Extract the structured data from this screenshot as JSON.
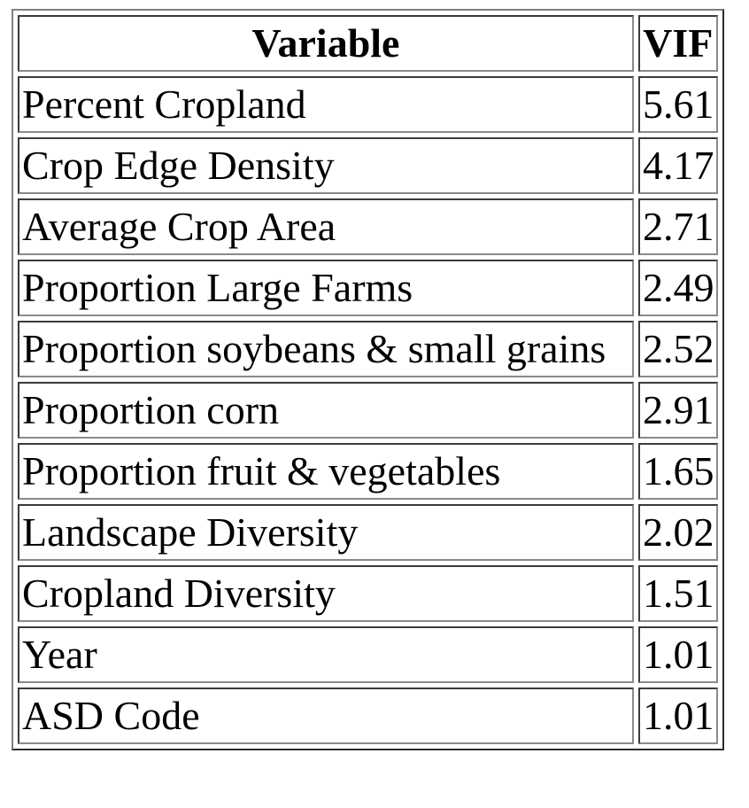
{
  "table": {
    "headers": {
      "variable": "Variable",
      "vif": "VIF"
    },
    "rows": [
      {
        "variable": "Percent Cropland",
        "vif": "5.61"
      },
      {
        "variable": "Crop Edge Density",
        "vif": "4.17"
      },
      {
        "variable": "Average Crop Area",
        "vif": "2.71"
      },
      {
        "variable": "Proportion Large Farms",
        "vif": "2.49"
      },
      {
        "variable": "Proportion soybeans & small grains",
        "vif": "2.52"
      },
      {
        "variable": "Proportion corn",
        "vif": "2.91"
      },
      {
        "variable": "Proportion fruit & vegetables",
        "vif": "1.65"
      },
      {
        "variable": "Landscape Diversity",
        "vif": "2.02"
      },
      {
        "variable": "Cropland Diversity",
        "vif": "1.51"
      },
      {
        "variable": "Year",
        "vif": "1.01"
      },
      {
        "variable": "ASD Code",
        "vif": "1.01"
      }
    ]
  }
}
